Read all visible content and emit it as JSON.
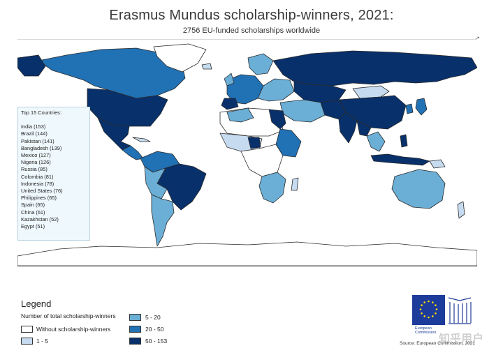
{
  "title": "Erasmus Mundus scholarship-winners, 2021:",
  "subtitle": "2756 EU-funded scholarships worldwide",
  "top15": {
    "header": "Top 15 Countries:",
    "items": [
      "India (153)",
      "Brazil (144)",
      "Pakistan (141)",
      "Bangladesh (139)",
      "Mexico (127)",
      "Nigeria (126)",
      "Russia (85)",
      "Colombia (81)",
      "Indonesia (78)",
      "United States (76)",
      "Philippines (65)",
      "Spain (65)",
      "China (61)",
      "Kazakhstan (52)",
      "Egypt (51)"
    ]
  },
  "legend": {
    "title": "Legend",
    "subtitle": "Number of total scholarship-winners",
    "classes": [
      {
        "label": "Without scholarship-winners",
        "color": "#ffffff"
      },
      {
        "label": "1 - 5",
        "color": "#c6dbef"
      },
      {
        "label": "5 - 20",
        "color": "#6baed6"
      },
      {
        "label": "20 - 50",
        "color": "#2171b5"
      },
      {
        "label": "50 - 153",
        "color": "#08306b"
      }
    ]
  },
  "colors": {
    "none": "#ffffff",
    "c1": "#c6dbef",
    "c2": "#6baed6",
    "c3": "#2171b5",
    "c4": "#08306b",
    "border": "#2b2b2b"
  },
  "north_arrow": "➶",
  "eu_logo": {
    "line1": "European",
    "line2": "Commission"
  },
  "source": "Source: European Commission, 2021",
  "watermark": "知乎用户"
}
